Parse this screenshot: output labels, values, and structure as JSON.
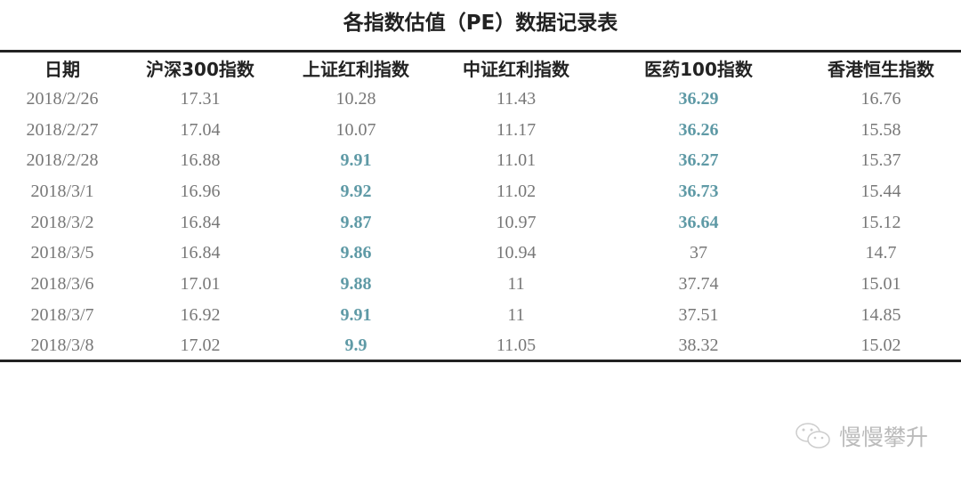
{
  "title": "各指数估值（PE）数据记录表",
  "watermark": "慢慢攀升",
  "colors": {
    "highlight": "#5f9aa6",
    "text": "#777777",
    "header": "#222222"
  },
  "chart_data": {
    "type": "table",
    "title": "各指数估值（PE）数据记录表",
    "columns": [
      "日期",
      "沪深300指数",
      "上证红利指数",
      "中证红利指数",
      "医药100指数",
      "香港恒生指数"
    ],
    "rows": [
      {
        "cells": [
          "2018/2/26",
          "17.31",
          "10.28",
          "11.43",
          "36.29",
          "16.76"
        ],
        "highlight": [
          4
        ]
      },
      {
        "cells": [
          "2018/2/27",
          "17.04",
          "10.07",
          "11.17",
          "36.26",
          "15.58"
        ],
        "highlight": [
          4
        ]
      },
      {
        "cells": [
          "2018/2/28",
          "16.88",
          "9.91",
          "11.01",
          "36.27",
          "15.37"
        ],
        "highlight": [
          2,
          4
        ]
      },
      {
        "cells": [
          "2018/3/1",
          "16.96",
          "9.92",
          "11.02",
          "36.73",
          "15.44"
        ],
        "highlight": [
          2,
          4
        ]
      },
      {
        "cells": [
          "2018/3/2",
          "16.84",
          "9.87",
          "10.97",
          "36.64",
          "15.12"
        ],
        "highlight": [
          2,
          4
        ]
      },
      {
        "cells": [
          "2018/3/5",
          "16.84",
          "9.86",
          "10.94",
          "37",
          "14.7"
        ],
        "highlight": [
          2
        ]
      },
      {
        "cells": [
          "2018/3/6",
          "17.01",
          "9.88",
          "11",
          "37.74",
          "15.01"
        ],
        "highlight": [
          2
        ]
      },
      {
        "cells": [
          "2018/3/7",
          "16.92",
          "9.91",
          "11",
          "37.51",
          "14.85"
        ],
        "highlight": [
          2
        ]
      },
      {
        "cells": [
          "2018/3/8",
          "17.02",
          "9.9",
          "11.05",
          "38.32",
          "15.02"
        ],
        "highlight": [
          2
        ]
      }
    ]
  }
}
